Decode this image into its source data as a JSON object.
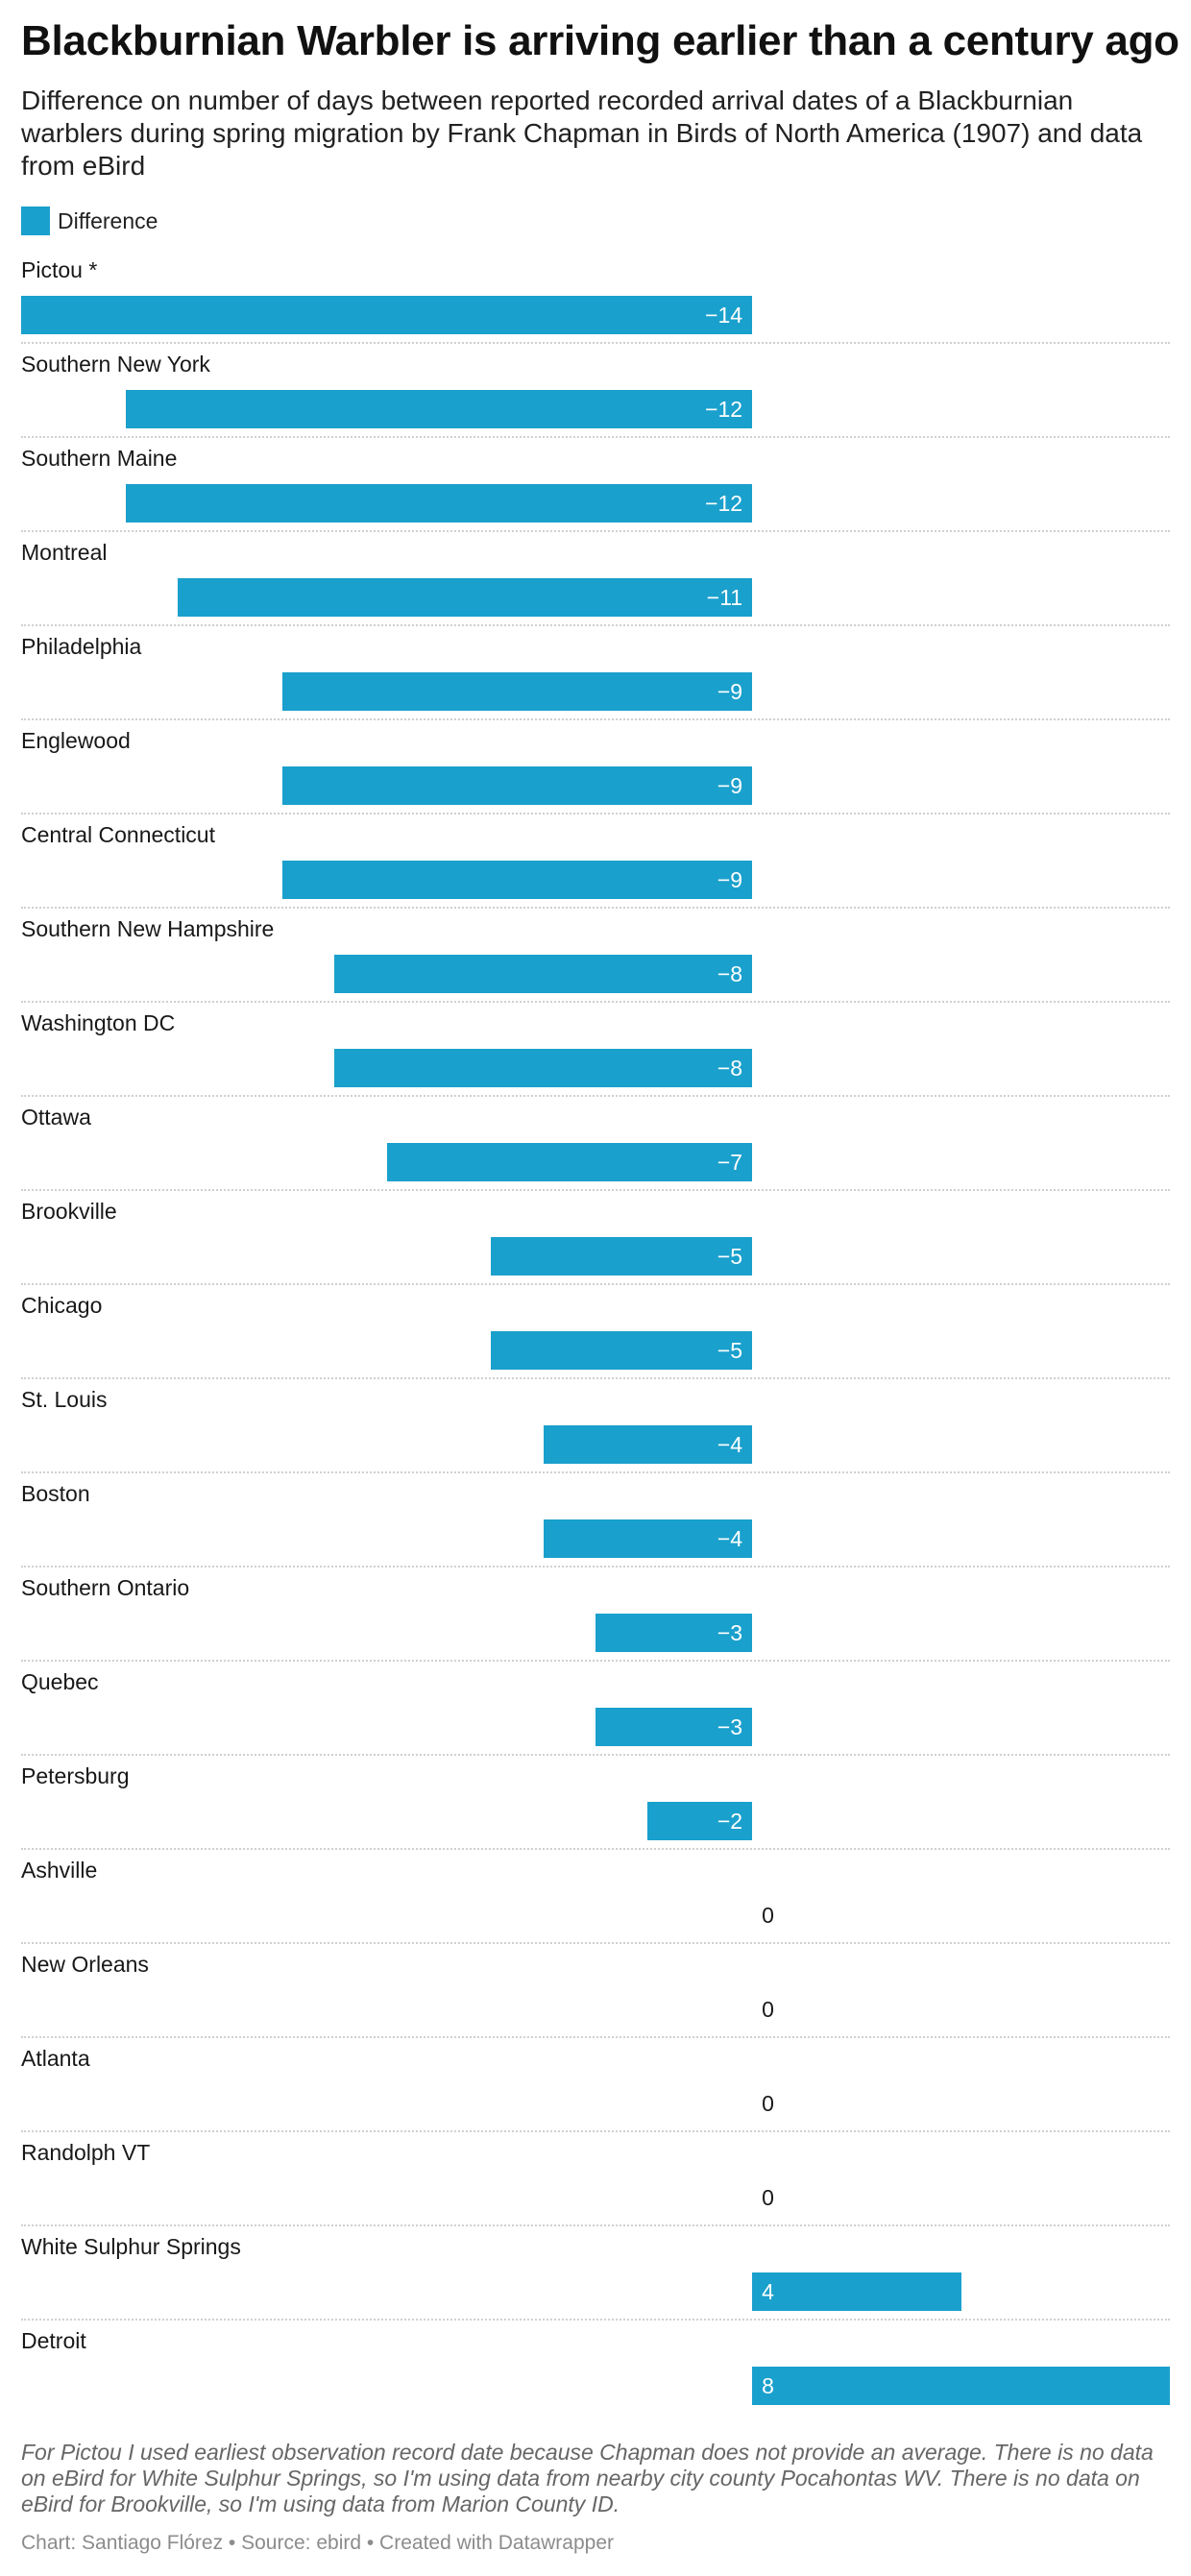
{
  "header": {
    "title": "Blackburnian Warbler is arriving earlier than a century ago",
    "subtitle": "Difference on number of days between reported recorded arrival dates of a Blackburnian warblers during spring migration by Frank Chapman in Birds of North America (1907) and data from eBird"
  },
  "legend": {
    "label": "Difference"
  },
  "colors": {
    "bar": "#1aa0cc",
    "value_inside": "#ffffff",
    "value_outside": "#181818"
  },
  "chart_data": {
    "type": "bar",
    "orientation": "horizontal",
    "xlim": [
      -14,
      8
    ],
    "series": [
      {
        "name": "Difference"
      }
    ],
    "categories": [
      "Pictou *",
      "Southern New York",
      "Southern Maine",
      "Montreal",
      "Philadelphia",
      "Englewood",
      "Central Connecticut",
      "Southern New Hampshire",
      "Washington DC",
      "Ottawa",
      "Brookville",
      "Chicago",
      "St. Louis",
      "Boston",
      "Southern Ontario",
      "Quebec",
      "Petersburg",
      "Ashville",
      "New Orleans",
      "Atlanta",
      "Randolph VT",
      "White Sulphur Springs",
      "Detroit"
    ],
    "values": [
      -14,
      -12,
      -12,
      -11,
      -9,
      -9,
      -9,
      -8,
      -8,
      -7,
      -5,
      -5,
      -4,
      -4,
      -3,
      -3,
      -2,
      0,
      0,
      0,
      0,
      4,
      8
    ],
    "value_labels": [
      "−14",
      "−12",
      "−12",
      "−11",
      "−9",
      "−9",
      "−9",
      "−8",
      "−8",
      "−7",
      "−5",
      "−5",
      "−4",
      "−4",
      "−3",
      "−3",
      "−2",
      "0",
      "0",
      "0",
      "0",
      "4",
      "8"
    ]
  },
  "footer": {
    "notes": "For Pictou I used earliest observation record date because Chapman does not provide an average. There is no data on eBird for White Sulphur Springs, so I'm using data from nearby city county Pocahontas WV. There is no data on eBird for Brookville, so I'm using data from Marion County ID.",
    "credit": "Chart: Santiago Flórez • Source: ebird • Created with Datawrapper"
  }
}
